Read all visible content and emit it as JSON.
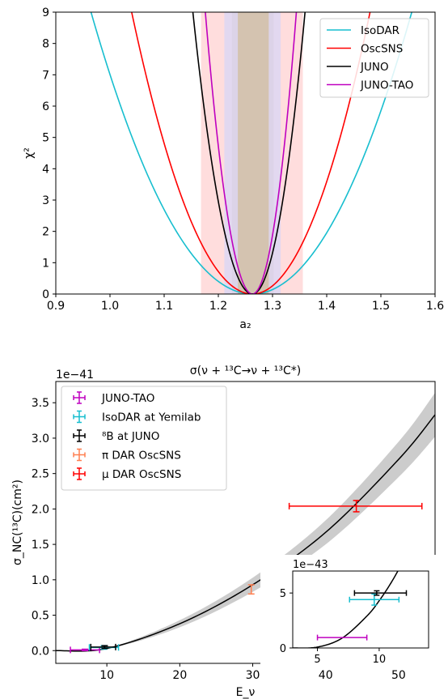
{
  "chart_data": [
    {
      "type": "line",
      "xlabel": "a₂",
      "ylabel": "χ²",
      "xlim": [
        0.9,
        1.6
      ],
      "ylim": [
        0,
        9
      ],
      "x_ticks": [
        "0.9",
        "1.0",
        "1.1",
        "1.2",
        "1.3",
        "1.4",
        "1.5",
        "1.6"
      ],
      "y_ticks": [
        "0",
        "1",
        "2",
        "3",
        "4",
        "5",
        "6",
        "7",
        "8",
        "9"
      ],
      "legend_position": "top-right",
      "center": 1.263,
      "series": [
        {
          "name": "IsoDAR",
          "color": "#17becf",
          "x": [
            0.965,
            1.0,
            1.1,
            1.2,
            1.263,
            1.3,
            1.4,
            1.5,
            1.557
          ],
          "y": [
            9.0,
            6.2,
            2.5,
            0.35,
            0.0,
            0.1,
            1.45,
            5.1,
            9.0
          ]
        },
        {
          "name": "OscSNS",
          "color": "#ff0000",
          "x": [
            1.04,
            1.1,
            1.2,
            1.263,
            1.3,
            1.4,
            1.48
          ],
          "y": [
            9.0,
            5.1,
            0.78,
            0.0,
            0.2,
            3.6,
            9.0
          ]
        },
        {
          "name": "JUNO",
          "color": "#000000",
          "x": [
            1.153,
            1.2,
            1.263,
            1.3,
            1.36
          ],
          "y": [
            9.0,
            3.0,
            0.0,
            1.2,
            9.0
          ]
        },
        {
          "name": "JUNO-TAO",
          "color": "#bf00bf",
          "x": [
            1.176,
            1.2,
            1.263,
            1.3,
            1.344
          ],
          "y": [
            9.0,
            5.1,
            0.0,
            1.8,
            9.0
          ]
        }
      ],
      "bands": [
        {
          "series": "OscSNS",
          "color": "#ffdddd",
          "x_range": [
            1.168,
            1.356
          ]
        },
        {
          "series": "JUNO",
          "color": "#e2d8f0",
          "x_range": [
            1.211,
            1.315
          ]
        },
        {
          "series": "JUNO-TAO",
          "color": "#dcd3e8",
          "x_range": [
            1.225,
            1.302
          ]
        },
        {
          "series": "IsoDAR",
          "color": "#d4c3b0",
          "x_range": [
            1.236,
            1.293
          ]
        }
      ]
    },
    {
      "type": "scatter",
      "title": "σ(ν + ¹³C→ν + ¹³C*)",
      "xlabel": "E_ν",
      "ylabel": "σ_NC(¹³C)(cm²)",
      "y_multiplier": "1e−41",
      "xlim": [
        3,
        55
      ],
      "ylim": [
        -0.18,
        3.8
      ],
      "x_ticks": [
        "10",
        "20",
        "30",
        "40",
        "50"
      ],
      "y_ticks": [
        "0.0",
        "0.5",
        "1.0",
        "1.5",
        "2.0",
        "2.5",
        "3.0",
        "3.5"
      ],
      "legend_position": "top-left",
      "curve": {
        "x": [
          3,
          10,
          20,
          30,
          40,
          50,
          55
        ],
        "y": [
          0.0,
          0.03,
          0.38,
          0.93,
          1.67,
          2.7,
          3.33
        ]
      },
      "band": {
        "x": [
          3,
          10,
          20,
          30,
          40,
          50,
          55
        ],
        "lower": [
          0.0,
          0.025,
          0.33,
          0.83,
          1.5,
          2.45,
          3.02
        ],
        "upper": [
          0.0,
          0.035,
          0.43,
          1.03,
          1.84,
          2.95,
          3.64
        ]
      },
      "series": [
        {
          "name": "JUNO-TAO",
          "color": "#bf00bf",
          "x": 7.0,
          "y": 0.01,
          "xerr": [
            5.0,
            9.0
          ],
          "yerr": [
            0.0,
            0.02
          ]
        },
        {
          "name": "IsoDAR at Yemilab",
          "color": "#17becf",
          "x": 9.6,
          "y": 0.045,
          "xerr": [
            7.6,
            11.6
          ],
          "yerr": [
            0.02,
            0.07
          ]
        },
        {
          "name": "⁸B at JUNO",
          "color": "#000000",
          "x": 9.7,
          "y": 0.05,
          "xerr": [
            7.8,
            11.2
          ],
          "yerr": [
            0.03,
            0.07
          ]
        },
        {
          "name": "π DAR OscSNS",
          "color": "#ff7f50",
          "x": 29.8,
          "y": 0.87,
          "xerr": [
            29.8,
            29.8
          ],
          "yerr": [
            0.8,
            0.93
          ]
        },
        {
          "name": "μ DAR OscSNS",
          "color": "#ff0000",
          "x": 44.2,
          "y": 2.04,
          "xerr": [
            35.0,
            53.2
          ],
          "yerr": [
            1.96,
            2.12
          ]
        }
      ],
      "inset": {
        "y_multiplier": "1e−43",
        "xlim": [
          3,
          14
        ],
        "ylim": [
          0,
          7
        ],
        "x_ticks": [
          "5",
          "10"
        ],
        "y_ticks": [
          "0",
          "5"
        ],
        "curve": {
          "x": [
            3,
            5,
            7,
            9,
            10,
            11,
            12
          ],
          "y": [
            0.0,
            0.08,
            0.9,
            2.9,
            4.3,
            6.0,
            8.0
          ]
        },
        "points": [
          {
            "color": "#bf00bf",
            "x": 7.0,
            "y": 0.95,
            "xerr": [
              5.0,
              9.0
            ]
          },
          {
            "color": "#17becf",
            "x": 9.6,
            "y": 4.4,
            "xerr": [
              7.6,
              11.6
            ],
            "yerr": [
              3.9,
              4.9
            ]
          },
          {
            "color": "#000000",
            "x": 9.8,
            "y": 5.0,
            "xerr": [
              8.0,
              12.2
            ],
            "yerr": [
              4.8,
              5.2
            ]
          }
        ]
      }
    }
  ]
}
